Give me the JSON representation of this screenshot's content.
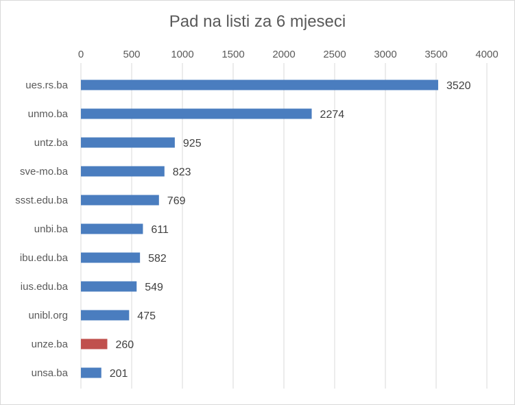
{
  "chart_data": {
    "type": "bar",
    "orientation": "horizontal",
    "title": "Pad na listi za 6 mjeseci",
    "categories": [
      "ues.rs.ba",
      "unmo.ba",
      "untz.ba",
      "sve-mo.ba",
      "ssst.edu.ba",
      "unbi.ba",
      "ibu.edu.ba",
      "ius.edu.ba",
      "unibl.org",
      "unze.ba",
      "unsa.ba"
    ],
    "values": [
      3520,
      2274,
      925,
      823,
      769,
      611,
      582,
      549,
      475,
      260,
      201
    ],
    "bar_colors": [
      "#4a7dbf",
      "#4a7dbf",
      "#4a7dbf",
      "#4a7dbf",
      "#4a7dbf",
      "#4a7dbf",
      "#4a7dbf",
      "#4a7dbf",
      "#4a7dbf",
      "#c0504d",
      "#4a7dbf"
    ],
    "xlim": [
      0,
      4000
    ],
    "xticks": [
      0,
      500,
      1000,
      1500,
      2000,
      2500,
      3000,
      3500,
      4000
    ],
    "x_axis_position": "top",
    "grid": true,
    "data_labels": true,
    "legend": false
  }
}
